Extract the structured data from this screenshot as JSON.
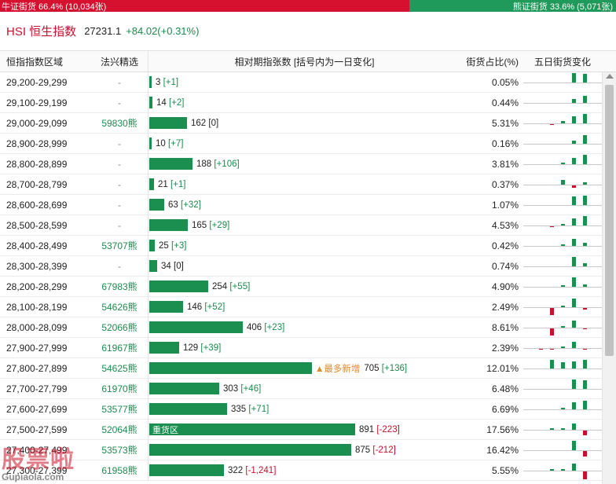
{
  "topbar": {
    "bull_label": "牛证街货 66.4% (10,034张)",
    "bear_label": "熊证街货 33.6% (5,071张)",
    "bull_share": 66.4,
    "bear_share": 33.6,
    "bull_color": "#d6102f",
    "bear_color": "#1f9a5a"
  },
  "header": {
    "index_name": "HSI 恒生指数",
    "index_value": "27231.1",
    "index_change": "+84.02(+0.31%)"
  },
  "table": {
    "columns": [
      "恒指指数区域",
      "法兴精选",
      "相对期指张数 [括号内为一日变化]",
      "街货占比(%)",
      "五日街货变化"
    ],
    "bar_max": 891,
    "rows": [
      {
        "range": "29,200-29,299",
        "pick": "-",
        "count": "3",
        "delta": "[+1]",
        "value": 3,
        "pct": "0.05%",
        "spark": [
          0,
          0,
          0,
          16,
          14
        ]
      },
      {
        "range": "29,100-29,199",
        "pick": "-",
        "count": "14",
        "delta": "[+2]",
        "value": 14,
        "pct": "0.44%",
        "spark": [
          0,
          0,
          0,
          6,
          12
        ]
      },
      {
        "range": "29,000-29,099",
        "pick": "59830熊",
        "count": "162",
        "delta": "[0]",
        "value": 162,
        "pct": "5.31%",
        "spark": [
          0,
          -2,
          3,
          12,
          16
        ]
      },
      {
        "range": "28,900-28,999",
        "pick": "-",
        "count": "10",
        "delta": "[+7]",
        "value": 10,
        "pct": "0.16%",
        "spark": [
          0,
          0,
          0,
          5,
          14
        ]
      },
      {
        "range": "28,800-28,899",
        "pick": "-",
        "count": "188",
        "delta": "[+106]",
        "value": 188,
        "pct": "3.81%",
        "spark": [
          0,
          0,
          2,
          10,
          16
        ]
      },
      {
        "range": "28,700-28,799",
        "pick": "-",
        "count": "21",
        "delta": "[+1]",
        "value": 21,
        "pct": "0.37%",
        "spark": [
          0,
          0,
          7,
          -5,
          3
        ]
      },
      {
        "range": "28,600-28,699",
        "pick": "-",
        "count": "63",
        "delta": "[+32]",
        "value": 63,
        "pct": "1.07%",
        "spark": [
          0,
          0,
          0,
          14,
          16
        ]
      },
      {
        "range": "28,500-28,599",
        "pick": "-",
        "count": "165",
        "delta": "[+29]",
        "value": 165,
        "pct": "4.53%",
        "spark": [
          0,
          -2,
          2,
          12,
          16
        ]
      },
      {
        "range": "28,400-28,499",
        "pick": "53707熊",
        "count": "25",
        "delta": "[+3]",
        "value": 25,
        "pct": "0.42%",
        "spark": [
          0,
          0,
          2,
          12,
          5
        ]
      },
      {
        "range": "28,300-28,399",
        "pick": "-",
        "count": "34",
        "delta": "[0]",
        "value": 34,
        "pct": "0.74%",
        "spark": [
          0,
          0,
          0,
          16,
          5
        ]
      },
      {
        "range": "28,200-28,299",
        "pick": "67983熊",
        "count": "254",
        "delta": "[+55]",
        "value": 254,
        "pct": "4.90%",
        "spark": [
          0,
          0,
          2,
          16,
          3
        ]
      },
      {
        "range": "28,100-28,199",
        "pick": "54626熊",
        "count": "146",
        "delta": "[+52]",
        "value": 146,
        "pct": "2.49%",
        "spark": [
          0,
          -12,
          2,
          14,
          -3
        ]
      },
      {
        "range": "28,000-28,099",
        "pick": "52066熊",
        "count": "406",
        "delta": "[+23]",
        "value": 406,
        "pct": "8.61%",
        "spark": [
          0,
          -12,
          2,
          12,
          -2
        ]
      },
      {
        "range": "27,900-27,999",
        "pick": "61967熊",
        "count": "129",
        "delta": "[+39]",
        "value": 129,
        "pct": "2.39%",
        "spark": [
          -2,
          -2,
          2,
          10,
          -2
        ]
      },
      {
        "range": "27,800-27,899",
        "pick": "54625熊",
        "count": "705",
        "delta": "[+136]",
        "value": 705,
        "pct": "12.01%",
        "spark": [
          0,
          14,
          10,
          12,
          14
        ],
        "tag": "▲最多新增"
      },
      {
        "range": "27,700-27,799",
        "pick": "61970熊",
        "count": "303",
        "delta": "[+46]",
        "value": 303,
        "pct": "6.48%",
        "spark": [
          0,
          0,
          0,
          16,
          14
        ]
      },
      {
        "range": "27,600-27,699",
        "pick": "53577熊",
        "count": "335",
        "delta": "[+71]",
        "value": 335,
        "pct": "6.69%",
        "spark": [
          0,
          0,
          2,
          12,
          14
        ]
      },
      {
        "range": "27,500-27,599",
        "pick": "52064熊",
        "count": "891",
        "delta": "[-223]",
        "value": 891,
        "pct": "17.56%",
        "spark": [
          0,
          2,
          2,
          10,
          -8
        ],
        "label": "重货区"
      },
      {
        "range": "27,400-27,499",
        "pick": "53573熊",
        "count": "875",
        "delta": "[-212]",
        "value": 875,
        "pct": "16.42%",
        "spark": [
          0,
          0,
          0,
          16,
          -10
        ]
      },
      {
        "range": "27,300-27,399",
        "pick": "61958熊",
        "count": "322",
        "delta": "[-1,241]",
        "value": 322,
        "pct": "5.55%",
        "spark": [
          0,
          2,
          2,
          12,
          -14
        ]
      }
    ]
  },
  "watermark": {
    "cn": "股票啦",
    "en": "Gupiaola.com"
  }
}
